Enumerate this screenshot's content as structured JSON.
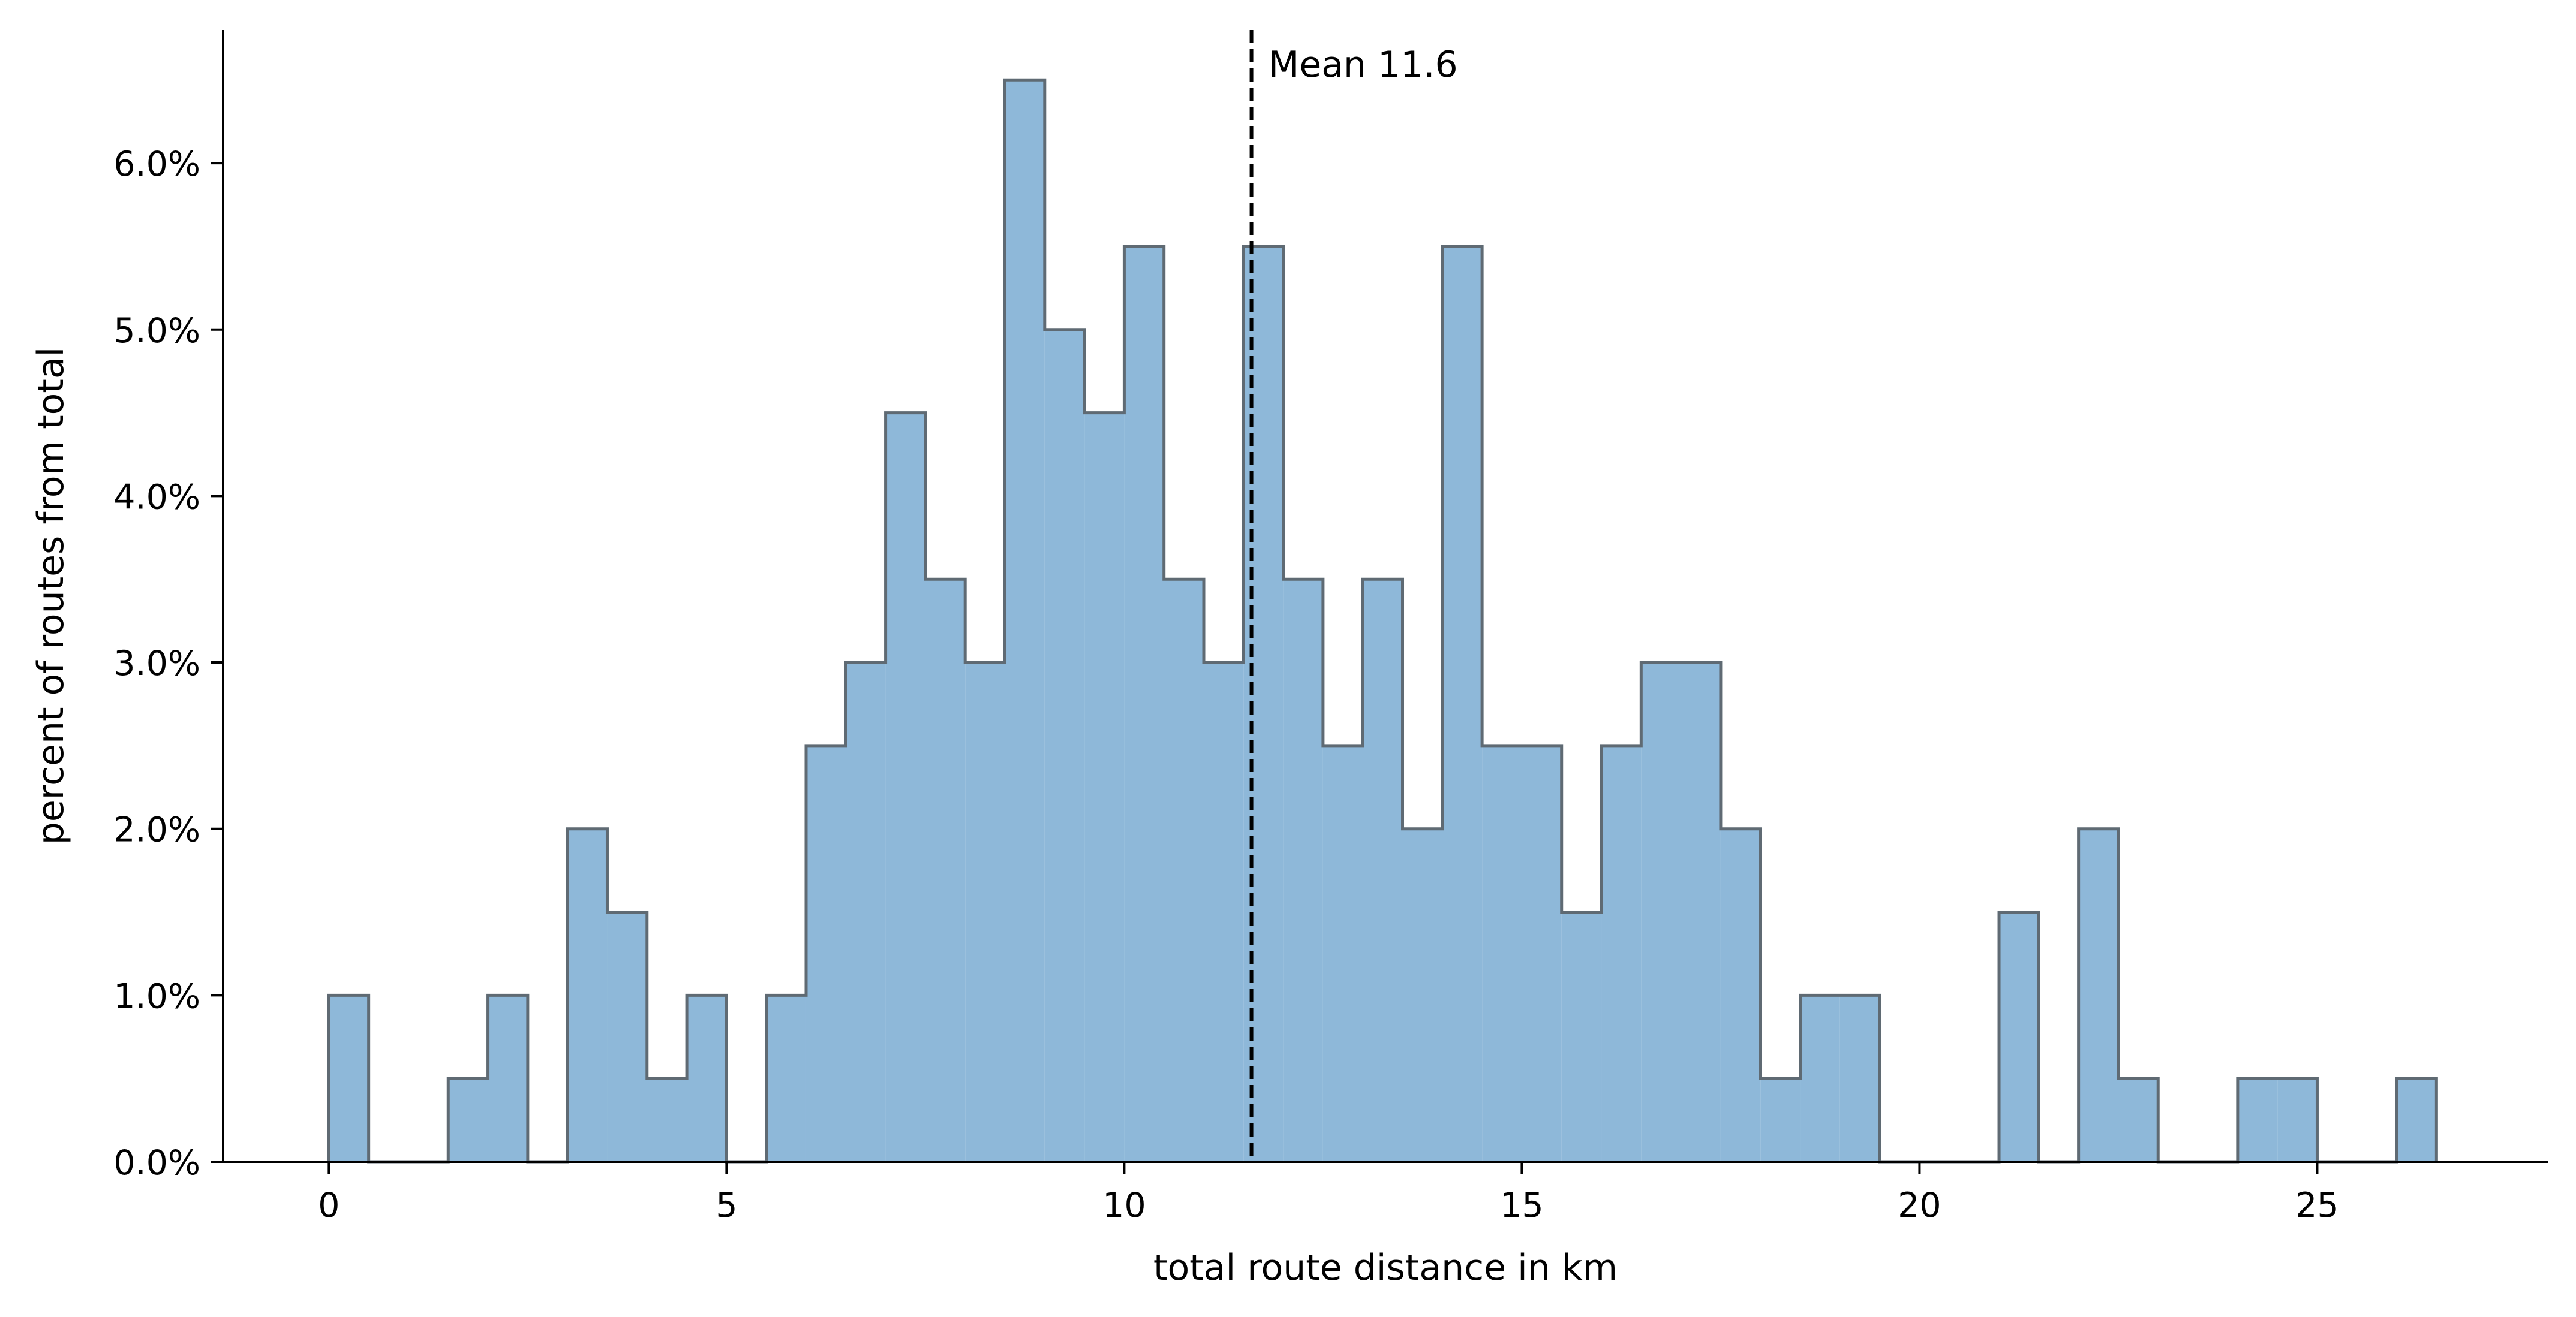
{
  "chart_data": {
    "type": "bar",
    "subtype": "histogram-stepfilled",
    "title": "",
    "xlabel": "total route distance in km",
    "ylabel": "percent of routes from total",
    "bin_width": 0.5,
    "bins": [
      {
        "x0": 0.0,
        "x1": 0.5,
        "percent": 1.0
      },
      {
        "x0": 0.5,
        "x1": 1.0,
        "percent": 0.0
      },
      {
        "x0": 1.0,
        "x1": 1.5,
        "percent": 0.0
      },
      {
        "x0": 1.5,
        "x1": 2.0,
        "percent": 0.5
      },
      {
        "x0": 2.0,
        "x1": 2.5,
        "percent": 1.0
      },
      {
        "x0": 2.5,
        "x1": 3.0,
        "percent": 0.0
      },
      {
        "x0": 3.0,
        "x1": 3.5,
        "percent": 2.0
      },
      {
        "x0": 3.5,
        "x1": 4.0,
        "percent": 1.5
      },
      {
        "x0": 4.0,
        "x1": 4.5,
        "percent": 0.5
      },
      {
        "x0": 4.5,
        "x1": 5.0,
        "percent": 1.0
      },
      {
        "x0": 5.0,
        "x1": 5.5,
        "percent": 0.0
      },
      {
        "x0": 5.5,
        "x1": 6.0,
        "percent": 1.0
      },
      {
        "x0": 6.0,
        "x1": 6.5,
        "percent": 2.5
      },
      {
        "x0": 6.5,
        "x1": 7.0,
        "percent": 3.0
      },
      {
        "x0": 7.0,
        "x1": 7.5,
        "percent": 4.5
      },
      {
        "x0": 7.5,
        "x1": 8.0,
        "percent": 3.5
      },
      {
        "x0": 8.0,
        "x1": 8.5,
        "percent": 3.0
      },
      {
        "x0": 8.5,
        "x1": 9.0,
        "percent": 6.5
      },
      {
        "x0": 9.0,
        "x1": 9.5,
        "percent": 5.0
      },
      {
        "x0": 9.5,
        "x1": 10.0,
        "percent": 4.5
      },
      {
        "x0": 10.0,
        "x1": 10.5,
        "percent": 5.5
      },
      {
        "x0": 10.5,
        "x1": 11.0,
        "percent": 3.5
      },
      {
        "x0": 11.0,
        "x1": 11.5,
        "percent": 3.0
      },
      {
        "x0": 11.5,
        "x1": 12.0,
        "percent": 5.5
      },
      {
        "x0": 12.0,
        "x1": 12.5,
        "percent": 3.5
      },
      {
        "x0": 12.5,
        "x1": 13.0,
        "percent": 2.5
      },
      {
        "x0": 13.0,
        "x1": 13.5,
        "percent": 3.5
      },
      {
        "x0": 13.5,
        "x1": 14.0,
        "percent": 2.0
      },
      {
        "x0": 14.0,
        "x1": 14.5,
        "percent": 5.5
      },
      {
        "x0": 14.5,
        "x1": 15.0,
        "percent": 2.5
      },
      {
        "x0": 15.0,
        "x1": 15.5,
        "percent": 2.5
      },
      {
        "x0": 15.5,
        "x1": 16.0,
        "percent": 1.5
      },
      {
        "x0": 16.0,
        "x1": 16.5,
        "percent": 2.5
      },
      {
        "x0": 16.5,
        "x1": 17.0,
        "percent": 3.0
      },
      {
        "x0": 17.0,
        "x1": 17.5,
        "percent": 3.0
      },
      {
        "x0": 17.5,
        "x1": 18.0,
        "percent": 2.0
      },
      {
        "x0": 18.0,
        "x1": 18.5,
        "percent": 0.5
      },
      {
        "x0": 18.5,
        "x1": 19.0,
        "percent": 1.0
      },
      {
        "x0": 19.0,
        "x1": 19.5,
        "percent": 1.0
      },
      {
        "x0": 19.5,
        "x1": 20.0,
        "percent": 0.0
      },
      {
        "x0": 20.0,
        "x1": 20.5,
        "percent": 0.0
      },
      {
        "x0": 20.5,
        "x1": 21.0,
        "percent": 0.0
      },
      {
        "x0": 21.0,
        "x1": 21.5,
        "percent": 1.5
      },
      {
        "x0": 21.5,
        "x1": 22.0,
        "percent": 0.0
      },
      {
        "x0": 22.0,
        "x1": 22.5,
        "percent": 2.0
      },
      {
        "x0": 22.5,
        "x1": 23.0,
        "percent": 0.5
      },
      {
        "x0": 23.0,
        "x1": 23.5,
        "percent": 0.0
      },
      {
        "x0": 23.5,
        "x1": 24.0,
        "percent": 0.0
      },
      {
        "x0": 24.0,
        "x1": 24.5,
        "percent": 0.5
      },
      {
        "x0": 24.5,
        "x1": 25.0,
        "percent": 0.5
      },
      {
        "x0": 25.0,
        "x1": 25.5,
        "percent": 0.0
      },
      {
        "x0": 25.5,
        "x1": 26.0,
        "percent": 0.0
      },
      {
        "x0": 26.0,
        "x1": 26.5,
        "percent": 0.5
      }
    ],
    "xlim": [
      -1.33,
      27.9
    ],
    "ylim": [
      0,
      6.8
    ],
    "xticks": [
      0,
      5,
      10,
      15,
      20,
      25
    ],
    "xtick_labels": [
      "0",
      "5",
      "10",
      "15",
      "20",
      "25"
    ],
    "yticks": [
      0,
      1,
      2,
      3,
      4,
      5,
      6
    ],
    "ytick_labels": [
      "0.0%",
      "1.0%",
      "2.0%",
      "3.0%",
      "4.0%",
      "5.0%",
      "6.0%"
    ],
    "mean_line": {
      "x": 11.6,
      "label": "Mean 11.6",
      "style": "dashed",
      "color": "#000000"
    },
    "colors": {
      "fill": "#8eb8d9",
      "edge": "#5f6a73",
      "axis": "#000000"
    },
    "grid": false,
    "legend": "none"
  }
}
